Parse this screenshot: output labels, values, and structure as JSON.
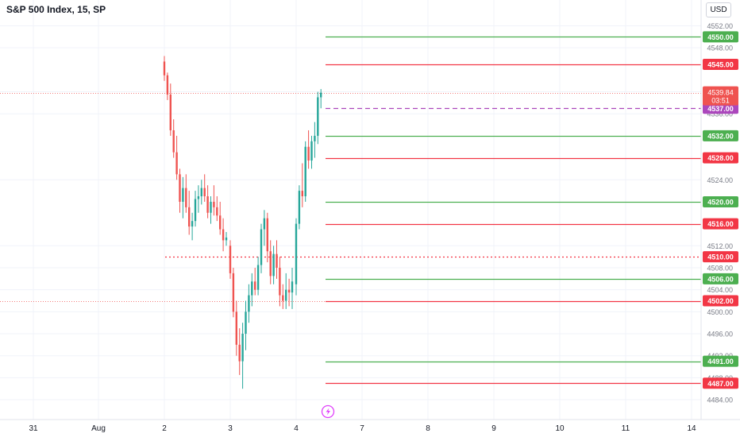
{
  "header": {
    "symbol_title": "S&P 500 Index, 15, SP",
    "currency": "USD"
  },
  "colors": {
    "up": "#26a69a",
    "down": "#ef5350",
    "level_green": "#4caf50",
    "level_red": "#f23645",
    "current_price": "#ef5350",
    "alert_purple": "#ab47bc",
    "grid": "#f0f3fa",
    "axis_text": "#787b86"
  },
  "chart_data": {
    "type": "candlestick",
    "title": "S&P 500 Index, 15, SP",
    "xlabel": "",
    "ylabel": "",
    "y_ticks": [
      "4552.00",
      "4548.00",
      "4540.00",
      "4536.00",
      "4524.00",
      "4512.00",
      "4508.00",
      "4504.00",
      "4500.00",
      "4496.00",
      "4492.00",
      "4488.00",
      "4484.00"
    ],
    "x_ticks": [
      "31",
      "Aug",
      "2",
      "3",
      "4",
      "7",
      "8",
      "9",
      "10",
      "11",
      "14"
    ],
    "ylim": [
      4482.5,
      4553.5
    ],
    "grid": true,
    "current_price": {
      "value": "4539.84",
      "countdown": "03:51"
    },
    "levels": [
      {
        "value": 4550.0,
        "label": "4550.00",
        "color": "green"
      },
      {
        "value": 4545.0,
        "label": "4545.00",
        "color": "red"
      },
      {
        "value": 4537.0,
        "label": "4537.00",
        "color": "purple",
        "style": "dashed"
      },
      {
        "value": 4532.0,
        "label": "4532.00",
        "color": "green"
      },
      {
        "value": 4528.0,
        "label": "4528.00",
        "color": "red"
      },
      {
        "value": 4520.0,
        "label": "4520.00",
        "color": "green"
      },
      {
        "value": 4516.0,
        "label": "4516.00",
        "color": "red"
      },
      {
        "value": 4510.0,
        "label": "4510.00",
        "color": "red",
        "style": "dotted"
      },
      {
        "value": 4506.0,
        "label": "4506.00",
        "color": "green"
      },
      {
        "value": 4502.0,
        "label": "4502.00",
        "color": "red"
      },
      {
        "value": 4491.0,
        "label": "4491.00",
        "color": "green"
      },
      {
        "value": 4487.0,
        "label": "4487.00",
        "color": "red"
      }
    ],
    "series": [
      {
        "date": "2",
        "candles": [
          [
            4545.5,
            4546.5,
            4542.0,
            4543.0
          ],
          [
            4543.0,
            4543.5,
            4538.5,
            4539.5
          ],
          [
            4539.5,
            4541.5,
            4532.0,
            4533.0
          ],
          [
            4533.0,
            4535.0,
            4528.0,
            4529.0
          ],
          [
            4529.0,
            4532.0,
            4524.0,
            4525.0
          ],
          [
            4525.0,
            4526.0,
            4518.0,
            4520.0
          ],
          [
            4520.0,
            4524.5,
            4517.0,
            4522.5
          ],
          [
            4522.5,
            4525.0,
            4518.0,
            4519.0
          ],
          [
            4519.0,
            4522.0,
            4514.0,
            4515.5
          ],
          [
            4515.5,
            4518.0,
            4513.0,
            4516.5
          ],
          [
            4516.5,
            4522.0,
            4515.5,
            4520.5
          ],
          [
            4520.5,
            4523.0,
            4518.0,
            4521.0
          ],
          [
            4521.0,
            4524.0,
            4519.5,
            4522.5
          ],
          [
            4522.5,
            4525.0,
            4520.0,
            4521.0
          ],
          [
            4521.0,
            4523.0,
            4517.0,
            4518.0
          ],
          [
            4518.0,
            4521.0,
            4516.0,
            4520.0
          ],
          [
            4520.0,
            4523.0,
            4517.5,
            4519.0
          ],
          [
            4519.0,
            4521.0,
            4516.5,
            4517.5
          ],
          [
            4517.5,
            4520.0,
            4514.0,
            4515.0
          ],
          [
            4515.0,
            4517.0,
            4511.0,
            4513.0
          ],
          [
            4513.0,
            4514.5,
            4512.0,
            4513.5
          ]
        ]
      },
      {
        "date": "3",
        "candles": [
          [
            4512.0,
            4513.0,
            4506.0,
            4507.0
          ],
          [
            4507.0,
            4508.0,
            4499.0,
            4500.0
          ],
          [
            4500.0,
            4502.0,
            4492.0,
            4494.0
          ],
          [
            4494.0,
            4497.0,
            4488.5,
            4491.0
          ],
          [
            4491.0,
            4498.0,
            4486.0,
            4496.0
          ],
          [
            4496.0,
            4502.0,
            4493.0,
            4500.0
          ],
          [
            4500.0,
            4505.0,
            4498.0,
            4503.0
          ],
          [
            4503.0,
            4507.0,
            4501.0,
            4505.5
          ],
          [
            4505.5,
            4508.0,
            4503.0,
            4504.0
          ],
          [
            4504.0,
            4510.0,
            4503.0,
            4508.5
          ],
          [
            4508.5,
            4516.0,
            4507.0,
            4515.0
          ],
          [
            4515.0,
            4518.5,
            4512.0,
            4517.0
          ],
          [
            4517.0,
            4518.0,
            4509.0,
            4511.0
          ],
          [
            4511.0,
            4513.0,
            4505.0,
            4506.5
          ],
          [
            4506.5,
            4512.0,
            4505.0,
            4510.5
          ],
          [
            4510.5,
            4513.0,
            4506.0,
            4508.0
          ],
          [
            4508.0,
            4510.0,
            4501.0,
            4503.0
          ],
          [
            4503.0,
            4505.0,
            4500.5,
            4502.0
          ],
          [
            4502.0,
            4507.0,
            4500.5,
            4504.0
          ],
          [
            4504.0,
            4506.0,
            4501.0,
            4503.5
          ],
          [
            4503.5,
            4508.0,
            4500.5,
            4505.5
          ]
        ]
      },
      {
        "date": "4",
        "candles": [
          [
            4505.0,
            4517.0,
            4503.0,
            4516.0
          ],
          [
            4516.0,
            4523.0,
            4515.0,
            4522.0
          ],
          [
            4522.0,
            4527.0,
            4519.0,
            4521.0
          ],
          [
            4521.0,
            4531.0,
            4520.0,
            4530.0
          ],
          [
            4530.0,
            4533.0,
            4526.0,
            4527.5
          ],
          [
            4527.5,
            4532.0,
            4526.0,
            4531.0
          ],
          [
            4531.0,
            4534.5,
            4528.0,
            4532.0
          ],
          [
            4532.0,
            4540.0,
            4530.5,
            4539.0
          ],
          [
            4539.0,
            4540.5,
            4537.0,
            4539.84
          ]
        ]
      }
    ]
  }
}
